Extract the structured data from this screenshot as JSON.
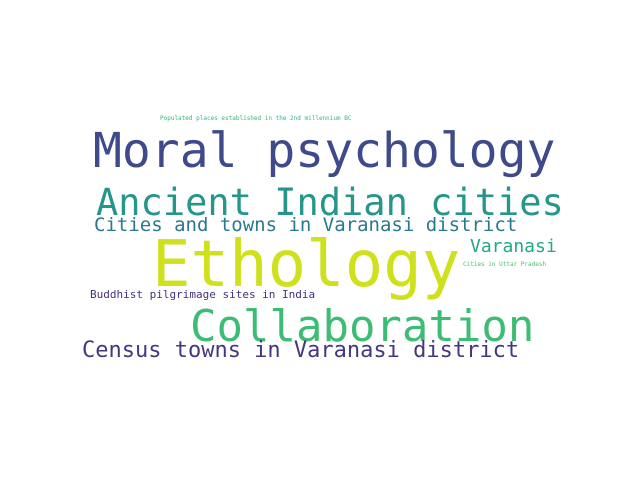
{
  "words": [
    {
      "key": "populated-places",
      "text": "Populated places established in the 2nd millennium BC",
      "color": "#35b779"
    },
    {
      "key": "moral-psychology",
      "text": "Moral psychology",
      "color": "#3e4a89"
    },
    {
      "key": "ancient-indian-cities",
      "text": "Ancient Indian cities",
      "color": "#26968a"
    },
    {
      "key": "cities-towns-varanasi",
      "text": "Cities and towns in Varanasi district",
      "color": "#2a788e"
    },
    {
      "key": "ethology",
      "text": "Ethology",
      "color": "#cfe11c"
    },
    {
      "key": "varanasi",
      "text": "Varanasi",
      "color": "#22a884"
    },
    {
      "key": "cities-uttar-pradesh",
      "text": "Cities in Uttar Pradesh",
      "color": "#4cc26c"
    },
    {
      "key": "buddhist-pilgrimage",
      "text": "Buddhist pilgrimage sites in India",
      "color": "#472f7d"
    },
    {
      "key": "collaboration",
      "text": "Collaboration",
      "color": "#3dbc74"
    },
    {
      "key": "census-towns-varanasi",
      "text": "Census towns in Varanasi district",
      "color": "#453781"
    }
  ]
}
